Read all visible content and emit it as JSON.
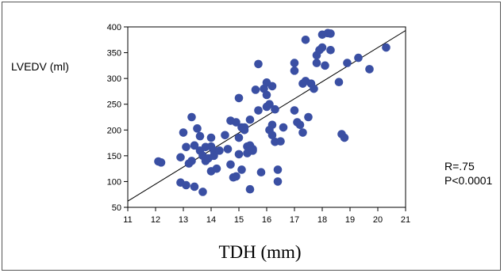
{
  "chart_data": {
    "type": "scatter",
    "title": "",
    "xlabel": "TDH (mm)",
    "ylabel": "LVEDV (ml)",
    "xlim": [
      11,
      21
    ],
    "ylim": [
      50,
      400
    ],
    "xticks": [
      "11",
      "12",
      "13",
      "14",
      "15",
      "16",
      "17",
      "18",
      "19",
      "20",
      "21"
    ],
    "yticks": [
      "50",
      "100",
      "150",
      "200",
      "250",
      "300",
      "350",
      "400"
    ],
    "grid": false,
    "annotations": [
      "R=.75",
      "P<0.0001"
    ],
    "marker_color": "#3a4fa3",
    "regression_line": {
      "from": [
        11,
        62
      ],
      "to": [
        21,
        393
      ]
    },
    "points": [
      [
        12.1,
        139
      ],
      [
        12.2,
        137
      ],
      [
        12.9,
        98
      ],
      [
        12.9,
        147
      ],
      [
        13.0,
        195
      ],
      [
        13.1,
        167
      ],
      [
        13.1,
        93
      ],
      [
        13.2,
        135
      ],
      [
        13.3,
        140
      ],
      [
        13.3,
        225
      ],
      [
        13.4,
        170
      ],
      [
        13.4,
        90
      ],
      [
        13.5,
        203
      ],
      [
        13.6,
        160
      ],
      [
        13.6,
        188
      ],
      [
        13.7,
        150
      ],
      [
        13.7,
        80
      ],
      [
        13.8,
        167
      ],
      [
        13.8,
        140
      ],
      [
        13.9,
        145
      ],
      [
        14.0,
        185
      ],
      [
        14.0,
        120
      ],
      [
        14.0,
        168
      ],
      [
        14.1,
        160
      ],
      [
        14.1,
        150
      ],
      [
        14.2,
        125
      ],
      [
        14.3,
        160
      ],
      [
        14.5,
        190
      ],
      [
        14.6,
        163
      ],
      [
        14.7,
        218
      ],
      [
        14.7,
        133
      ],
      [
        14.8,
        108
      ],
      [
        14.9,
        110
      ],
      [
        14.9,
        215
      ],
      [
        15.0,
        262
      ],
      [
        15.0,
        153
      ],
      [
        15.0,
        185
      ],
      [
        15.1,
        205
      ],
      [
        15.1,
        123
      ],
      [
        15.2,
        205
      ],
      [
        15.2,
        200
      ],
      [
        15.3,
        155
      ],
      [
        15.3,
        168
      ],
      [
        15.4,
        220
      ],
      [
        15.4,
        170
      ],
      [
        15.4,
        85
      ],
      [
        15.5,
        160
      ],
      [
        15.5,
        163
      ],
      [
        15.6,
        278
      ],
      [
        15.7,
        328
      ],
      [
        15.7,
        238
      ],
      [
        15.8,
        118
      ],
      [
        15.9,
        280
      ],
      [
        16.0,
        245
      ],
      [
        16.0,
        292
      ],
      [
        16.0,
        268
      ],
      [
        16.1,
        250
      ],
      [
        16.1,
        200
      ],
      [
        16.2,
        285
      ],
      [
        16.2,
        210
      ],
      [
        16.2,
        190
      ],
      [
        16.3,
        177
      ],
      [
        16.3,
        240
      ],
      [
        16.4,
        123
      ],
      [
        16.4,
        100
      ],
      [
        16.5,
        178
      ],
      [
        16.6,
        205
      ],
      [
        17.0,
        330
      ],
      [
        17.0,
        315
      ],
      [
        17.0,
        238
      ],
      [
        17.1,
        215
      ],
      [
        17.2,
        210
      ],
      [
        17.3,
        290
      ],
      [
        17.3,
        195
      ],
      [
        17.4,
        375
      ],
      [
        17.4,
        295
      ],
      [
        17.5,
        225
      ],
      [
        17.6,
        290
      ],
      [
        17.7,
        280
      ],
      [
        17.8,
        330
      ],
      [
        17.8,
        345
      ],
      [
        17.9,
        355
      ],
      [
        18.0,
        360
      ],
      [
        18.0,
        385
      ],
      [
        18.1,
        325
      ],
      [
        18.2,
        388
      ],
      [
        18.3,
        387
      ],
      [
        18.3,
        355
      ],
      [
        18.6,
        293
      ],
      [
        18.7,
        192
      ],
      [
        18.8,
        185
      ],
      [
        18.9,
        330
      ],
      [
        19.3,
        340
      ],
      [
        19.7,
        318
      ],
      [
        20.3,
        360
      ]
    ]
  }
}
